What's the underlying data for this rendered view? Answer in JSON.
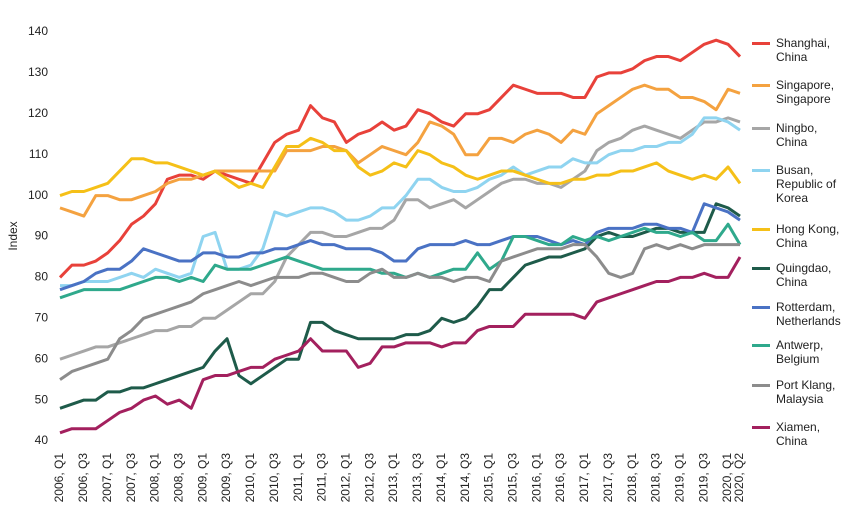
{
  "chart_data": {
    "type": "line",
    "y_label": "Index",
    "categories": [
      "2006, Q1",
      null,
      "2006, Q3",
      null,
      "2007, Q1",
      null,
      "2007, Q3",
      null,
      "2008, Q1",
      null,
      "2008, Q3",
      null,
      "2009, Q1",
      null,
      "2009, Q3",
      null,
      "2010, Q1",
      null,
      "2010, Q3",
      null,
      "2011, Q1",
      null,
      "2011, Q3",
      null,
      "2012, Q1",
      null,
      "2012, Q3",
      null,
      "2013, Q1",
      null,
      "2013, Q3",
      null,
      "2014, Q1",
      null,
      "2014, Q3",
      null,
      "2015, Q1",
      null,
      "2015, Q3",
      null,
      "2016, Q1",
      null,
      "2016, Q3",
      null,
      "2017, Q1",
      null,
      "2017, Q3",
      null,
      "2018, Q1",
      null,
      "2018, Q3",
      null,
      "2019, Q1",
      null,
      "2019, Q3",
      null,
      "2020, Q1",
      "2020, Q2"
    ],
    "ylim": [
      40,
      140
    ],
    "yticks": [
      40,
      50,
      60,
      70,
      80,
      90,
      100,
      110,
      120,
      130,
      140
    ],
    "legend": "right",
    "series": [
      {
        "name": "Shanghai, China",
        "color": "#e8413a",
        "values": [
          80,
          83,
          83,
          84,
          86,
          89,
          93,
          95,
          98,
          104,
          105,
          105,
          104,
          106,
          105,
          104,
          103,
          108,
          113,
          115,
          116,
          122,
          119,
          118,
          113,
          115,
          116,
          118,
          116,
          117,
          121,
          120,
          118,
          117,
          120,
          120,
          121,
          124,
          127,
          126,
          125,
          125,
          125,
          124,
          124,
          129,
          130,
          130,
          131,
          133,
          134,
          134,
          133,
          135,
          137,
          138,
          137,
          134
        ]
      },
      {
        "name": "Singapore, Singapore",
        "color": "#f4a240",
        "values": [
          97,
          96,
          95,
          100,
          100,
          99,
          99,
          100,
          101,
          103,
          104,
          104,
          105,
          106,
          106,
          106,
          106,
          106,
          106,
          111,
          111,
          111,
          112,
          112,
          111,
          108,
          110,
          112,
          111,
          110,
          113,
          118,
          117,
          115,
          110,
          110,
          114,
          114,
          113,
          115,
          116,
          115,
          113,
          116,
          115,
          120,
          122,
          124,
          126,
          127,
          126,
          126,
          124,
          124,
          123,
          121,
          126,
          125
        ]
      },
      {
        "name": "Ningbo, China",
        "color": "#a6a6a6",
        "values": [
          60,
          61,
          62,
          63,
          63,
          64,
          65,
          66,
          67,
          67,
          68,
          68,
          70,
          70,
          72,
          74,
          76,
          76,
          79,
          85,
          88,
          91,
          91,
          90,
          90,
          91,
          92,
          92,
          94,
          99,
          99,
          97,
          98,
          99,
          97,
          99,
          101,
          103,
          104,
          104,
          103,
          103,
          102,
          104,
          106,
          111,
          113,
          114,
          116,
          117,
          116,
          115,
          114,
          116,
          118,
          118,
          119,
          118
        ]
      },
      {
        "name": "Busan, Republic of Korea",
        "color": "#8fd4f0",
        "values": [
          78,
          78,
          79,
          79,
          79,
          80,
          81,
          80,
          82,
          81,
          80,
          81,
          90,
          91,
          82,
          82,
          83,
          87,
          96,
          95,
          96,
          97,
          97,
          96,
          94,
          94,
          95,
          97,
          97,
          100,
          104,
          104,
          102,
          101,
          101,
          102,
          104,
          105,
          107,
          105,
          106,
          107,
          107,
          109,
          108,
          108,
          110,
          111,
          111,
          112,
          112,
          113,
          113,
          115,
          119,
          119,
          118,
          116
        ]
      },
      {
        "name": "Hong Kong, China",
        "color": "#f5c018",
        "values": [
          100,
          101,
          101,
          102,
          103,
          106,
          109,
          109,
          108,
          108,
          107,
          106,
          105,
          106,
          104,
          102,
          103,
          102,
          107,
          112,
          112,
          114,
          113,
          111,
          111,
          107,
          105,
          106,
          108,
          107,
          111,
          110,
          108,
          107,
          105,
          104,
          105,
          106,
          106,
          105,
          104,
          103,
          103,
          104,
          104,
          105,
          105,
          106,
          106,
          107,
          108,
          106,
          105,
          104,
          105,
          104,
          107,
          103
        ]
      },
      {
        "name": "Quingdao, China",
        "color": "#1e5b4a",
        "values": [
          48,
          49,
          50,
          50,
          52,
          52,
          53,
          53,
          54,
          55,
          56,
          57,
          58,
          62,
          65,
          56,
          54,
          56,
          58,
          60,
          60,
          69,
          69,
          67,
          66,
          65,
          65,
          65,
          65,
          66,
          66,
          67,
          70,
          69,
          70,
          73,
          77,
          77,
          80,
          83,
          84,
          85,
          85,
          86,
          87,
          90,
          91,
          90,
          90,
          91,
          92,
          92,
          91,
          91,
          91,
          98,
          97,
          95
        ]
      },
      {
        "name": "Rotterdam, Netherlands",
        "color": "#4a72c4",
        "values": [
          77,
          78,
          79,
          81,
          82,
          82,
          84,
          87,
          86,
          85,
          84,
          84,
          86,
          86,
          85,
          85,
          86,
          86,
          87,
          87,
          88,
          89,
          88,
          88,
          87,
          87,
          87,
          86,
          84,
          84,
          87,
          88,
          88,
          88,
          89,
          88,
          88,
          89,
          90,
          90,
          90,
          89,
          88,
          89,
          88,
          91,
          92,
          92,
          92,
          93,
          93,
          92,
          92,
          91,
          98,
          97,
          96,
          94
        ]
      },
      {
        "name": "Antwerp, Belgium",
        "color": "#2fa98c",
        "values": [
          75,
          76,
          77,
          77,
          77,
          77,
          78,
          79,
          80,
          80,
          79,
          80,
          79,
          83,
          82,
          82,
          82,
          83,
          84,
          85,
          84,
          83,
          82,
          82,
          82,
          82,
          82,
          81,
          81,
          80,
          81,
          80,
          81,
          82,
          82,
          86,
          82,
          84,
          90,
          90,
          89,
          88,
          88,
          90,
          89,
          90,
          89,
          90,
          91,
          92,
          91,
          91,
          90,
          91,
          89,
          89,
          93,
          88
        ]
      },
      {
        "name": "Port Klang, Malaysia",
        "color": "#8c8c8c",
        "values": [
          55,
          57,
          58,
          59,
          60,
          65,
          67,
          70,
          71,
          72,
          73,
          74,
          76,
          77,
          78,
          79,
          78,
          79,
          80,
          80,
          80,
          81,
          81,
          80,
          79,
          79,
          81,
          82,
          80,
          80,
          81,
          80,
          80,
          79,
          80,
          80,
          79,
          84,
          85,
          86,
          87,
          87,
          87,
          88,
          88,
          85,
          81,
          80,
          81,
          87,
          88,
          87,
          88,
          87,
          88,
          88,
          88,
          88
        ]
      },
      {
        "name": "Xiamen, China",
        "color": "#a3205e",
        "values": [
          42,
          43,
          43,
          43,
          45,
          47,
          48,
          50,
          51,
          49,
          50,
          48,
          55,
          56,
          56,
          57,
          58,
          58,
          60,
          61,
          62,
          65,
          62,
          62,
          62,
          58,
          59,
          63,
          63,
          64,
          64,
          64,
          63,
          64,
          64,
          67,
          68,
          68,
          68,
          71,
          71,
          71,
          71,
          71,
          70,
          74,
          75,
          76,
          77,
          78,
          79,
          79,
          80,
          80,
          81,
          80,
          80,
          85
        ]
      }
    ]
  }
}
